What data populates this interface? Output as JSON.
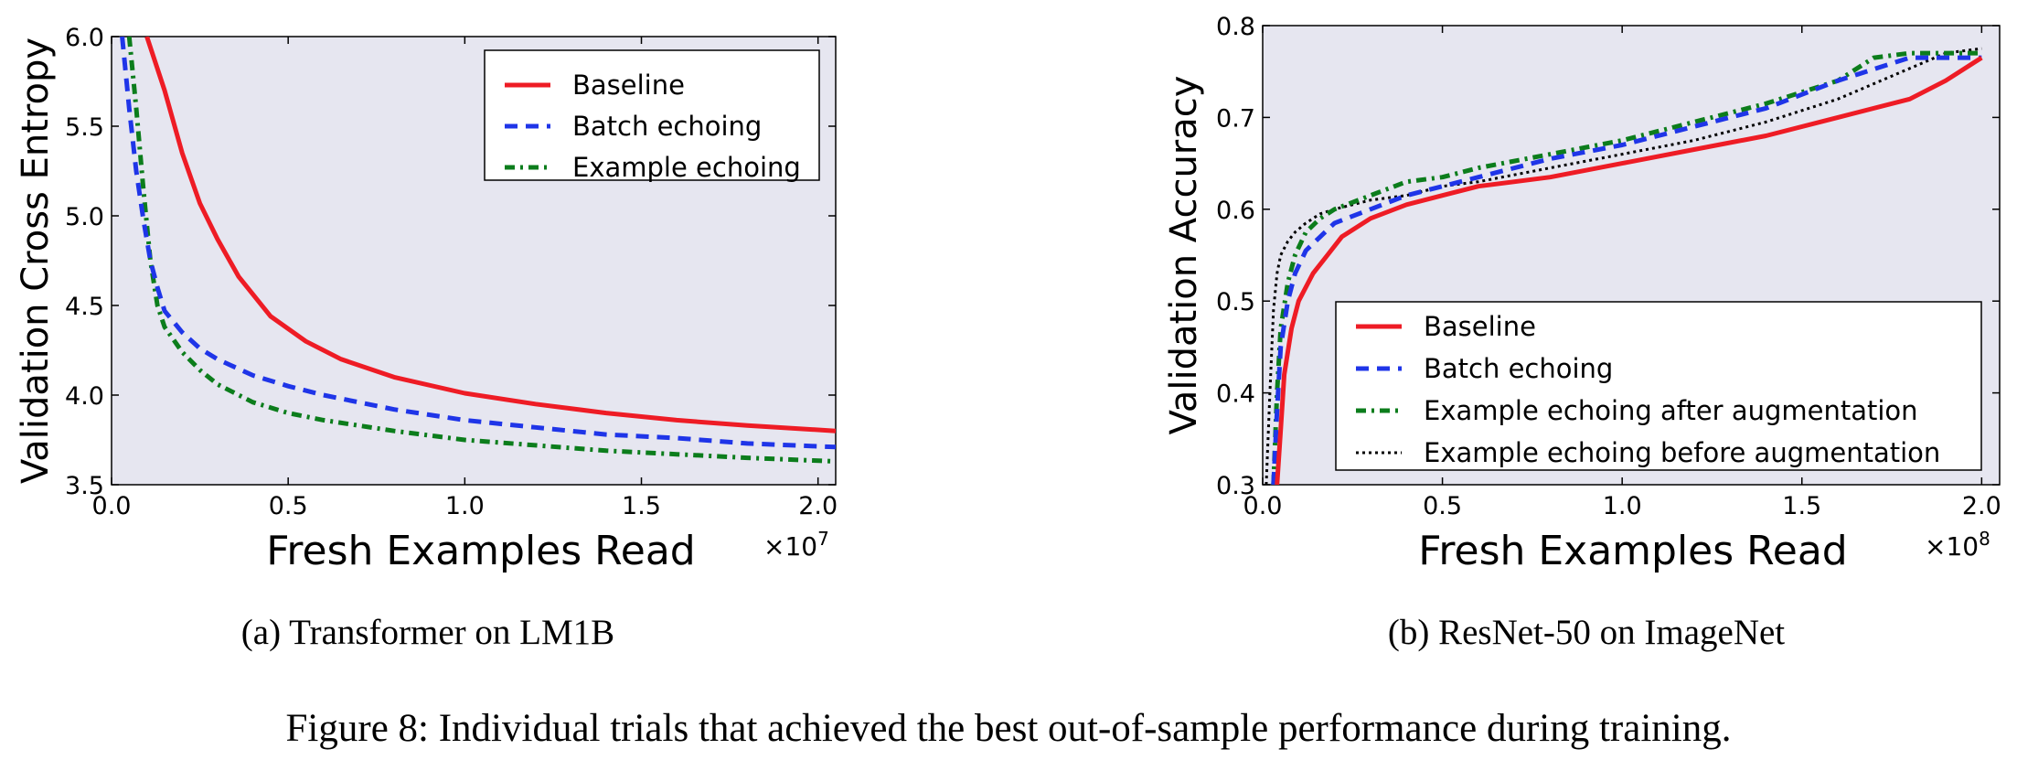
{
  "figure": {
    "caption": "Figure 8: Individual trials that achieved the best out-of-sample performance during training."
  },
  "colors": {
    "baseline": "#ee1c25",
    "batch": "#1f35e8",
    "example": "#0c7d1c",
    "example_before": "#000000",
    "plot_bg": "#e6e6f0"
  },
  "chart_data": [
    {
      "type": "line",
      "caption": "(a) Transformer on LM1B",
      "xlabel": "Fresh Examples Read",
      "ylabel": "Validation Cross Entropy",
      "x_multiplier": "×10",
      "x_exponent": "7",
      "xlim": [
        0.0,
        2.05
      ],
      "ylim": [
        3.5,
        6.0
      ],
      "xticks": [
        0.0,
        0.5,
        1.0,
        1.5,
        2.0
      ],
      "xtick_labels": [
        "0.0",
        "0.5",
        "1.0",
        "1.5",
        "2.0"
      ],
      "yticks": [
        3.5,
        4.0,
        4.5,
        5.0,
        5.5,
        6.0
      ],
      "ytick_labels": [
        "3.5",
        "4.0",
        "4.5",
        "5.0",
        "5.5",
        "6.0"
      ],
      "legend_position": "top-right",
      "series": [
        {
          "name": "Baseline",
          "style": "solid",
          "x": [
            0.1,
            0.15,
            0.2,
            0.25,
            0.3,
            0.36,
            0.45,
            0.55,
            0.65,
            0.8,
            1.0,
            1.2,
            1.4,
            1.6,
            1.8,
            2.05
          ],
          "y": [
            6.0,
            5.7,
            5.35,
            5.07,
            4.87,
            4.66,
            4.44,
            4.3,
            4.2,
            4.1,
            4.01,
            3.95,
            3.9,
            3.86,
            3.83,
            3.8
          ]
        },
        {
          "name": "Batch echoing",
          "style": "dashed",
          "x": [
            0.03,
            0.05,
            0.07,
            0.09,
            0.11,
            0.13,
            0.15,
            0.2,
            0.25,
            0.3,
            0.4,
            0.5,
            0.6,
            0.8,
            1.0,
            1.2,
            1.4,
            1.6,
            1.8,
            2.05
          ],
          "y": [
            6.0,
            5.6,
            5.25,
            4.98,
            4.75,
            4.6,
            4.47,
            4.35,
            4.26,
            4.2,
            4.11,
            4.05,
            4.0,
            3.92,
            3.86,
            3.82,
            3.78,
            3.76,
            3.73,
            3.71
          ]
        },
        {
          "name": "Example echoing",
          "style": "dashdot",
          "x": [
            0.05,
            0.07,
            0.09,
            0.11,
            0.13,
            0.15,
            0.2,
            0.25,
            0.3,
            0.4,
            0.5,
            0.6,
            0.8,
            1.0,
            1.2,
            1.4,
            1.6,
            1.8,
            2.05
          ],
          "y": [
            6.0,
            5.6,
            5.15,
            4.75,
            4.5,
            4.38,
            4.24,
            4.14,
            4.06,
            3.96,
            3.9,
            3.86,
            3.8,
            3.75,
            3.72,
            3.69,
            3.67,
            3.65,
            3.63
          ]
        }
      ]
    },
    {
      "type": "line",
      "caption": "(b) ResNet-50 on ImageNet",
      "xlabel": "Fresh Examples Read",
      "ylabel": "Validation Accuracy",
      "x_multiplier": "×10",
      "x_exponent": "8",
      "xlim": [
        0.0,
        2.05
      ],
      "ylim": [
        0.3,
        0.8
      ],
      "xticks": [
        0.0,
        0.5,
        1.0,
        1.5,
        2.0
      ],
      "xtick_labels": [
        "0.0",
        "0.5",
        "1.0",
        "1.5",
        "2.0"
      ],
      "yticks": [
        0.3,
        0.4,
        0.5,
        0.6,
        0.7,
        0.8
      ],
      "ytick_labels": [
        "0.3",
        "0.4",
        "0.5",
        "0.6",
        "0.7",
        "0.8"
      ],
      "legend_position": "lower-right",
      "series": [
        {
          "name": "Baseline",
          "style": "solid",
          "x": [
            0.04,
            0.05,
            0.06,
            0.08,
            0.1,
            0.14,
            0.18,
            0.22,
            0.3,
            0.4,
            0.5,
            0.6,
            0.8,
            1.0,
            1.2,
            1.4,
            1.6,
            1.8,
            1.9,
            2.0
          ],
          "y": [
            0.3,
            0.36,
            0.42,
            0.47,
            0.5,
            0.53,
            0.55,
            0.57,
            0.59,
            0.605,
            0.615,
            0.625,
            0.635,
            0.65,
            0.665,
            0.68,
            0.7,
            0.72,
            0.74,
            0.765
          ]
        },
        {
          "name": "Batch echoing",
          "style": "dashed",
          "x": [
            0.03,
            0.04,
            0.05,
            0.07,
            0.09,
            0.12,
            0.16,
            0.2,
            0.3,
            0.4,
            0.5,
            0.6,
            0.8,
            1.0,
            1.2,
            1.4,
            1.6,
            1.8,
            2.0
          ],
          "y": [
            0.3,
            0.38,
            0.45,
            0.5,
            0.53,
            0.555,
            0.57,
            0.585,
            0.6,
            0.615,
            0.625,
            0.635,
            0.655,
            0.67,
            0.69,
            0.71,
            0.74,
            0.765,
            0.765
          ]
        },
        {
          "name": "Example echoing after augmentation",
          "style": "dashdot",
          "x": [
            0.03,
            0.04,
            0.05,
            0.07,
            0.09,
            0.12,
            0.16,
            0.2,
            0.3,
            0.4,
            0.5,
            0.6,
            0.8,
            1.0,
            1.2,
            1.4,
            1.6,
            1.7,
            1.8,
            2.0
          ],
          "y": [
            0.3,
            0.4,
            0.47,
            0.52,
            0.55,
            0.575,
            0.59,
            0.6,
            0.615,
            0.63,
            0.635,
            0.645,
            0.66,
            0.675,
            0.695,
            0.715,
            0.74,
            0.765,
            0.77,
            0.77
          ]
        },
        {
          "name": "Example echoing before augmentation",
          "style": "dotted",
          "x": [
            0.01,
            0.02,
            0.03,
            0.04,
            0.05,
            0.07,
            0.09,
            0.12,
            0.16,
            0.2,
            0.3,
            0.4,
            0.5,
            0.6,
            0.8,
            1.0,
            1.2,
            1.4,
            1.6,
            1.75,
            1.9,
            2.0
          ],
          "y": [
            0.3,
            0.4,
            0.49,
            0.53,
            0.55,
            0.565,
            0.575,
            0.585,
            0.595,
            0.6,
            0.61,
            0.615,
            0.625,
            0.63,
            0.645,
            0.66,
            0.675,
            0.695,
            0.72,
            0.745,
            0.77,
            0.775
          ]
        }
      ]
    }
  ]
}
